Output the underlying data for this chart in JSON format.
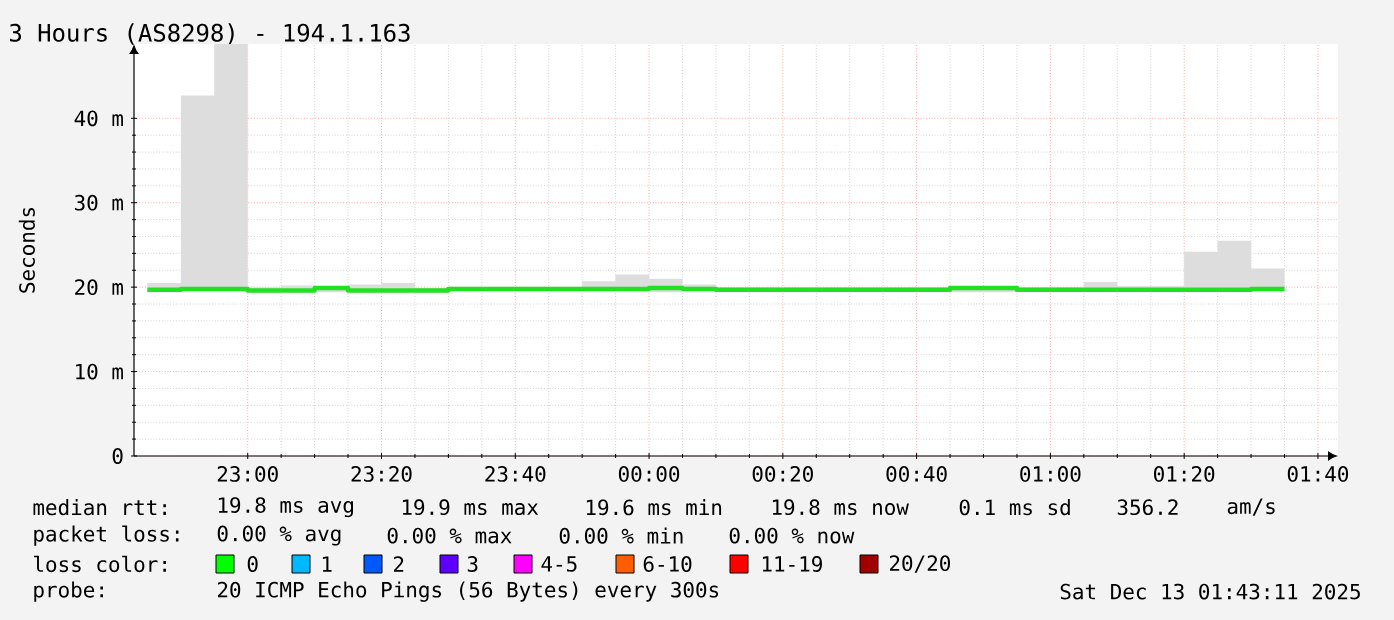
{
  "chart_data": {
    "type": "step",
    "title": "3 Hours (AS8298) - 194.1.163",
    "ylabel": "Seconds",
    "x": [
      "2025-12-12T22:45",
      "2025-12-12T22:50",
      "2025-12-12T22:55",
      "2025-12-12T23:00",
      "2025-12-12T23:05",
      "2025-12-12T23:10",
      "2025-12-12T23:15",
      "2025-12-12T23:20",
      "2025-12-12T23:25",
      "2025-12-12T23:30",
      "2025-12-12T23:35",
      "2025-12-12T23:40",
      "2025-12-12T23:45",
      "2025-12-12T23:50",
      "2025-12-12T23:55",
      "2025-12-13T00:00",
      "2025-12-13T00:05",
      "2025-12-13T00:10",
      "2025-12-13T00:15",
      "2025-12-13T00:20",
      "2025-12-13T00:25",
      "2025-12-13T00:30",
      "2025-12-13T00:35",
      "2025-12-13T00:40",
      "2025-12-13T00:45",
      "2025-12-13T00:50",
      "2025-12-13T00:55",
      "2025-12-13T01:00",
      "2025-12-13T01:05",
      "2025-12-13T01:10",
      "2025-12-13T01:15",
      "2025-12-13T01:20",
      "2025-12-13T01:25",
      "2025-12-13T01:30",
      "2025-12-13T01:35"
    ],
    "series": [
      {
        "color": "#22e022",
        "values": [
          19.7,
          19.8,
          19.8,
          19.6,
          19.6,
          19.9,
          19.6,
          19.6,
          19.6,
          19.8,
          19.8,
          19.8,
          19.8,
          19.8,
          19.8,
          19.9,
          19.8,
          19.7,
          19.7,
          19.7,
          19.7,
          19.7,
          19.7,
          19.7,
          19.9,
          19.9,
          19.7,
          19.7,
          19.7,
          19.7,
          19.7,
          19.7,
          19.7,
          19.8,
          19.8
        ],
        "lower": [
          19.4,
          19.4,
          19.4,
          19.4,
          19.4,
          19.4,
          19.4,
          19.4,
          19.4,
          19.4,
          19.4,
          19.4,
          19.4,
          19.4,
          19.4,
          19.4,
          19.4,
          19.4,
          19.4,
          19.4,
          19.4,
          19.4,
          19.4,
          19.4,
          19.4,
          19.4,
          19.4,
          19.4,
          19.4,
          19.4,
          19.4,
          19.4,
          19.4,
          19.4,
          19.4
        ],
        "upper": [
          20.5,
          42.7,
          48.8,
          20.0,
          20.2,
          19.9,
          20.3,
          20.5,
          19.9,
          20.0,
          20.0,
          20.0,
          20.0,
          20.7,
          21.5,
          21.0,
          20.3,
          20.0,
          20.0,
          20.0,
          20.0,
          20.0,
          20.0,
          20.0,
          20.0,
          20.0,
          20.0,
          20.0,
          20.6,
          20.1,
          20.1,
          24.2,
          25.5,
          22.2,
          23.2
        ]
      }
    ],
    "xlim": [
      "2025-12-12T22:43",
      "2025-12-13T01:43"
    ],
    "xticks": [
      {
        "value": "2025-12-12T23:00",
        "label": "23:00"
      },
      {
        "value": "2025-12-12T23:20",
        "label": "23:20"
      },
      {
        "value": "2025-12-12T23:40",
        "label": "23:40"
      },
      {
        "value": "2025-12-13T00:00",
        "label": "00:00"
      },
      {
        "value": "2025-12-13T00:20",
        "label": "00:20"
      },
      {
        "value": "2025-12-13T00:40",
        "label": "00:40"
      },
      {
        "value": "2025-12-13T01:00",
        "label": "01:00"
      },
      {
        "value": "2025-12-13T01:20",
        "label": "01:20"
      },
      {
        "value": "2025-12-13T01:40",
        "label": "01:40"
      }
    ],
    "ylim": [
      0,
      48.8
    ],
    "yticks": [
      0,
      {
        "value": 10,
        "label": "10 m"
      },
      {
        "value": 20,
        "label": "20 m"
      },
      {
        "value": 30,
        "label": "30 m"
      },
      {
        "value": 40,
        "label": "40 m"
      }
    ],
    "grid": true,
    "annotations": [
      "median rtt:",
      "19.8 ms avg",
      "19.9 ms max",
      "19.6 ms min",
      "19.8 ms now",
      "0.1 ms sd",
      "356.2",
      "am/s",
      "packet loss:",
      "0.00 % avg",
      "0.00 % max",
      "0.00 % min",
      "0.00 % now",
      "loss color:",
      "0",
      "1",
      "2",
      "3",
      "4-5",
      "6-10",
      "11-19",
      "20/20",
      "probe:",
      "20 ICMP Echo Pings (56 Bytes) every 300s",
      "Sat Dec 13 01:43:11 2025"
    ]
  }
}
